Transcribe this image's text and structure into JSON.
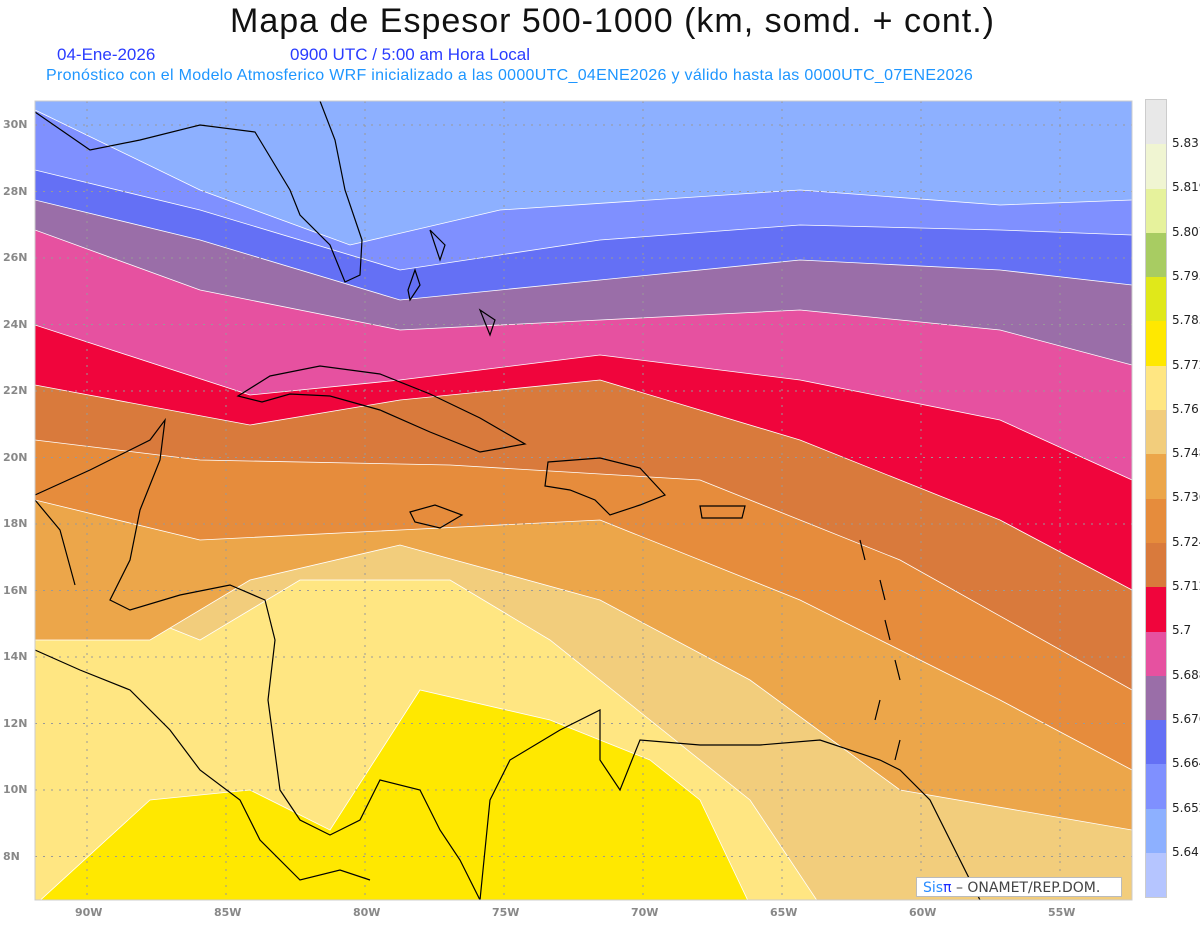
{
  "title": "Mapa de Espesor 500-1000 (km, somd. + cont.)",
  "date": "04-Ene-2026",
  "time": "0900 UTC / 5:00 am Hora Local",
  "forecast": "Pronóstico con el Modelo Atmosferico WRF inicializado a las 0000UTC_04ENE2026 y válido hasta las  0000UTC_07ENE2026",
  "credit": {
    "sis": "Sis",
    "pi": "π",
    "rest": " – ONAMET/REP.DOM."
  },
  "lon_ticks": [
    "90W",
    "85W",
    "80W",
    "75W",
    "70W",
    "65W",
    "60W",
    "55W"
  ],
  "lat_ticks": [
    "30N",
    "28N",
    "26N",
    "24N",
    "22N",
    "20N",
    "18N",
    "16N",
    "14N",
    "12N",
    "10N",
    "8N"
  ],
  "colorbar": {
    "colors": [
      "#e8e8e8",
      "#f0f5d2",
      "#e6f29c",
      "#a8cc62",
      "#e0e81a",
      "#ffe800",
      "#ffe682",
      "#f2cd7c",
      "#eca64a",
      "#e68c3c",
      "#d97a3c",
      "#f0053c",
      "#e651a0",
      "#9a6ea8",
      "#6470f5",
      "#7f90ff",
      "#8db0ff",
      "#b5c5ff"
    ],
    "labels": [
      "5.831",
      "5.819",
      "5.807",
      "5.795",
      "5.783",
      "5.772",
      "5.76",
      "5.748",
      "5.736",
      "5.724",
      "5.712",
      "5.7",
      "5.688",
      "5.676",
      "5.664",
      "5.652",
      "5.64"
    ]
  }
}
